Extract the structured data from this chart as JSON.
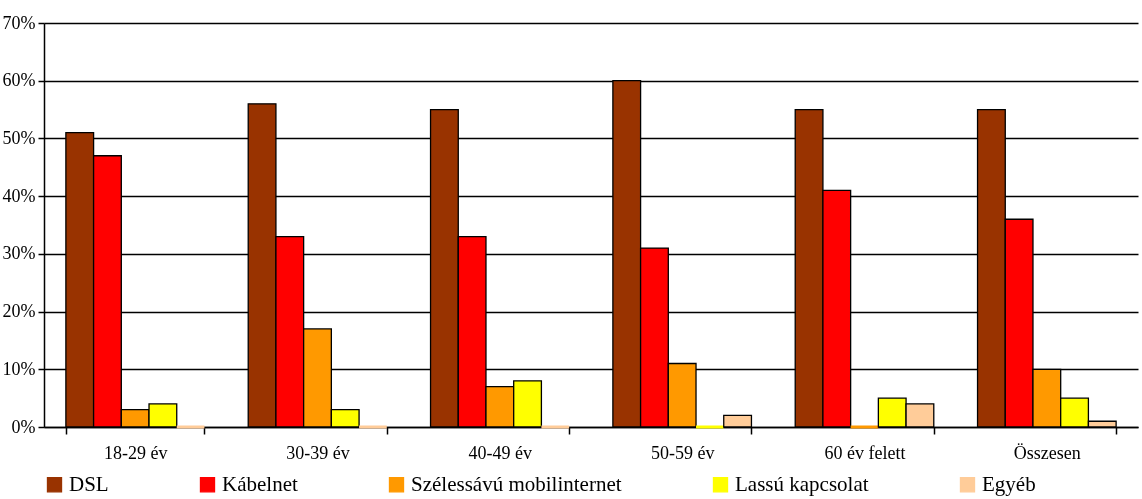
{
  "chart_data": {
    "type": "bar",
    "categories": [
      "18-29 év",
      "30-39 év",
      "40-49 év",
      "50-59 év",
      "60 év felett",
      "Összesen"
    ],
    "series": [
      {
        "name": "DSL",
        "color": "#993300",
        "values": [
          51,
          56,
          55,
          60,
          55,
          55
        ]
      },
      {
        "name": "Kábelnet",
        "color": "#ff0000",
        "values": [
          47,
          33,
          33,
          31,
          41,
          36
        ]
      },
      {
        "name": "Szélessávú mobilinternet",
        "color": "#ff9900",
        "values": [
          3,
          17,
          7,
          11,
          0,
          10
        ]
      },
      {
        "name": "Lassú kapcsolat",
        "color": "#ffff00",
        "values": [
          4,
          3,
          8,
          0,
          5,
          5
        ]
      },
      {
        "name": "Egyéb",
        "color": "#ffcc99",
        "values": [
          0,
          0,
          0,
          2,
          4,
          1
        ]
      }
    ],
    "ylim": [
      0,
      70
    ],
    "yticks": [
      {
        "value": 0,
        "label": "0%"
      },
      {
        "value": 10,
        "label": "10%"
      },
      {
        "value": 20,
        "label": "20%"
      },
      {
        "value": 30,
        "label": "30%"
      },
      {
        "value": 40,
        "label": "40%"
      },
      {
        "value": 50,
        "label": "50%"
      },
      {
        "value": 60,
        "label": "60%"
      },
      {
        "value": 70,
        "label": "70%"
      }
    ],
    "grid": "y",
    "legend": "bottom"
  }
}
